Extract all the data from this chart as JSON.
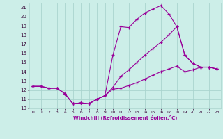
{
  "xlabel": "Windchill (Refroidissement éolien,°C)",
  "bg_color": "#cceee8",
  "grid_color": "#aad4ce",
  "line_color": "#990099",
  "xlim": [
    -0.5,
    23.5
  ],
  "ylim": [
    10,
    21.5
  ],
  "xticks": [
    0,
    1,
    2,
    3,
    4,
    5,
    6,
    7,
    8,
    9,
    10,
    11,
    12,
    13,
    14,
    15,
    16,
    17,
    18,
    19,
    20,
    21,
    22,
    23
  ],
  "yticks": [
    10,
    11,
    12,
    13,
    14,
    15,
    16,
    17,
    18,
    19,
    20,
    21
  ],
  "series1_x": [
    0,
    1,
    2,
    3,
    4,
    5,
    6,
    7,
    8,
    9,
    10,
    11,
    12,
    13,
    14,
    15,
    16,
    17,
    18,
    19,
    20,
    21,
    22,
    23
  ],
  "series1_y": [
    12.4,
    12.4,
    12.2,
    12.2,
    11.6,
    10.5,
    10.6,
    10.5,
    11.0,
    11.4,
    12.1,
    12.2,
    12.5,
    12.8,
    13.2,
    13.6,
    14.0,
    14.3,
    14.6,
    14.0,
    14.2,
    14.5,
    14.5,
    14.3
  ],
  "series2_x": [
    0,
    1,
    2,
    3,
    4,
    5,
    6,
    7,
    8,
    9,
    10,
    11,
    12,
    13,
    14,
    15,
    16,
    17,
    18,
    19,
    20,
    21,
    22,
    23
  ],
  "series2_y": [
    12.4,
    12.4,
    12.2,
    12.2,
    11.6,
    10.5,
    10.6,
    10.5,
    11.0,
    11.4,
    15.8,
    18.9,
    18.8,
    19.7,
    20.4,
    20.8,
    21.2,
    20.3,
    18.9,
    15.8,
    14.9,
    14.5,
    14.5,
    14.3
  ],
  "series3_x": [
    0,
    1,
    2,
    3,
    4,
    5,
    6,
    7,
    8,
    9,
    10,
    11,
    12,
    13,
    14,
    15,
    16,
    17,
    18,
    19,
    20,
    21,
    22,
    23
  ],
  "series3_y": [
    12.4,
    12.4,
    12.2,
    12.2,
    11.6,
    10.5,
    10.6,
    10.5,
    11.0,
    11.4,
    12.3,
    13.5,
    14.2,
    15.0,
    15.8,
    16.5,
    17.2,
    18.0,
    18.9,
    15.8,
    14.9,
    14.5,
    14.5,
    14.3
  ]
}
